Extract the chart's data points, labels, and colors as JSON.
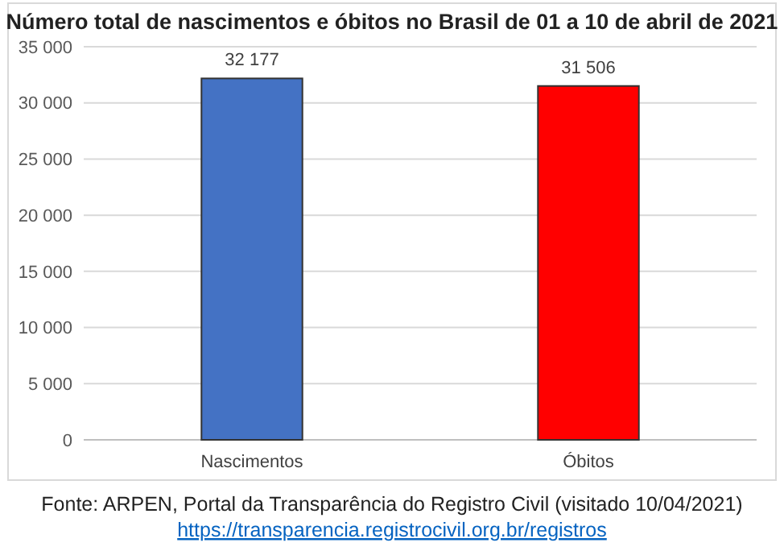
{
  "chart_data": {
    "type": "bar",
    "title": "Número total de nascimentos e óbitos no Brasil de 01 a 10 de abril de 2021",
    "categories": [
      "Nascimentos",
      "Óbitos"
    ],
    "values": [
      32177,
      31506
    ],
    "colors": [
      "#4472c4",
      "#ff0000"
    ],
    "value_labels": [
      "32 177",
      "31 506"
    ],
    "ylim": [
      0,
      35000
    ],
    "yticks": [
      {
        "value": 0,
        "label": "0"
      },
      {
        "value": 5000,
        "label": "5 000"
      },
      {
        "value": 10000,
        "label": "10 000"
      },
      {
        "value": 15000,
        "label": "15 000"
      },
      {
        "value": 20000,
        "label": "20 000"
      },
      {
        "value": 25000,
        "label": "25 000"
      },
      {
        "value": 30000,
        "label": "30 000"
      },
      {
        "value": 35000,
        "label": "35 000"
      }
    ],
    "grid": "y",
    "annotations": [
      "Fonte: ARPEN, Portal da Transparência do Registro Civil (visitado 10/04/2021)",
      "https://transparencia.registrocivil.org.br/registros"
    ]
  }
}
